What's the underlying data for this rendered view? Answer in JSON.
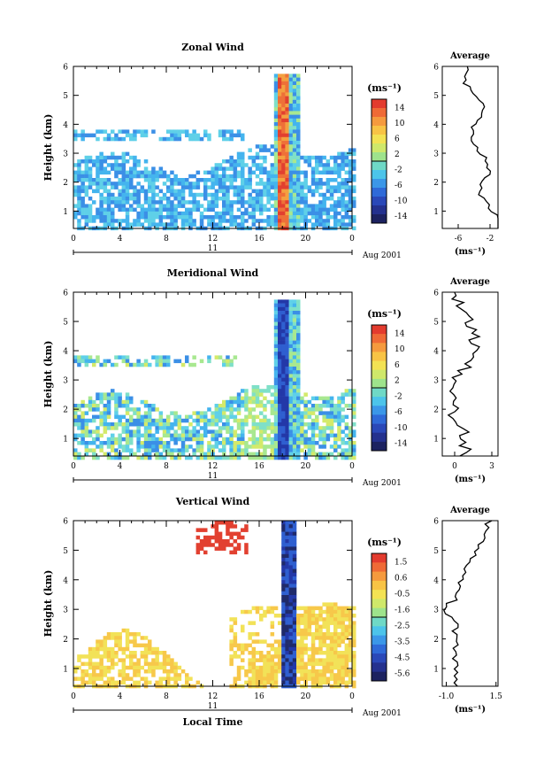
{
  "chart_data": [
    {
      "type": "heatmap",
      "title": "Zonal Wind",
      "ylabel": "Height (km)",
      "xlim": [
        0,
        24
      ],
      "ylim": [
        0.4,
        6
      ],
      "x_ticks": [
        "0",
        "4",
        "8",
        "12",
        "16",
        "20",
        "0"
      ],
      "y_ticks": [
        "1",
        "2",
        "3",
        "4",
        "5",
        "6"
      ],
      "date_label": "11",
      "date_suffix": "Aug 2001",
      "colorbar": {
        "unit": "(ms⁻¹)",
        "ticks": [
          "14",
          "10",
          "6",
          "2",
          "-2",
          "-6",
          "-10",
          "-14"
        ]
      },
      "average": {
        "title": "Average",
        "xticks": [
          "-6",
          "-2"
        ],
        "xlim": [
          -8,
          -1
        ],
        "xunit": "(ms⁻¹)",
        "y_ticks": [
          "1",
          "2",
          "3",
          "4",
          "5",
          "6"
        ]
      }
    },
    {
      "type": "heatmap",
      "title": "Meridional Wind",
      "ylabel": "Height (km)",
      "xlim": [
        0,
        24
      ],
      "ylim": [
        0.4,
        6
      ],
      "x_ticks": [
        "0",
        "4",
        "8",
        "12",
        "16",
        "20",
        "0"
      ],
      "y_ticks": [
        "1",
        "2",
        "3",
        "4",
        "5",
        "6"
      ],
      "date_label": "11",
      "date_suffix": "Aug 2001",
      "colorbar": {
        "unit": "(ms⁻¹)",
        "ticks": [
          "14",
          "10",
          "6",
          "2",
          "-2",
          "-6",
          "-10",
          "-14"
        ]
      },
      "average": {
        "title": "Average",
        "xticks": [
          "0",
          "3"
        ],
        "xlim": [
          -1,
          3.5
        ],
        "xunit": "(ms⁻¹)",
        "y_ticks": [
          "1",
          "2",
          "3",
          "4",
          "5",
          "6"
        ]
      }
    },
    {
      "type": "heatmap",
      "title": "Vertical Wind",
      "ylabel": "Height (km)",
      "xlabel": "Local Time",
      "xlim": [
        0,
        24
      ],
      "ylim": [
        0.4,
        6
      ],
      "x_ticks": [
        "0",
        "4",
        "8",
        "12",
        "16",
        "20",
        "0"
      ],
      "y_ticks": [
        "1",
        "2",
        "3",
        "4",
        "5",
        "6"
      ],
      "date_label": "11",
      "date_suffix": "Aug 2001",
      "colorbar": {
        "unit": "(ms⁻¹)",
        "ticks": [
          "1.5",
          "0.6",
          "-0.5",
          "-1.6",
          "-2.5",
          "-3.5",
          "-4.5",
          "-5.6"
        ]
      },
      "average": {
        "title": "Average",
        "xticks": [
          "-1.0",
          "1.5"
        ],
        "xlim": [
          -1.2,
          1.6
        ],
        "xunit": "(ms⁻¹)",
        "y_ticks": [
          "1",
          "2",
          "3",
          "4",
          "5",
          "6"
        ]
      }
    }
  ]
}
